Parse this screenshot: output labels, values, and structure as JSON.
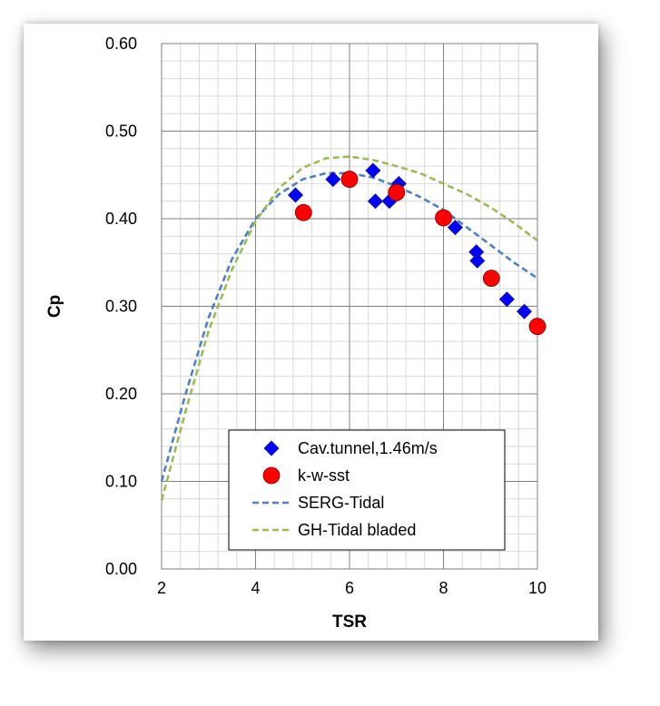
{
  "chart_data": {
    "type": "scatter",
    "title": "",
    "xlabel": "TSR",
    "ylabel": "Cp",
    "xlim": [
      2,
      10
    ],
    "ylim": [
      0,
      0.6
    ],
    "x_ticks": [
      2,
      4,
      6,
      8,
      10
    ],
    "y_ticks": [
      0.0,
      0.1,
      0.2,
      0.3,
      0.4,
      0.5,
      0.6
    ],
    "x_tick_labels": [
      "2",
      "4",
      "6",
      "8",
      "10"
    ],
    "y_tick_labels": [
      "0.00",
      "0.10",
      "0.20",
      "0.30",
      "0.40",
      "0.50",
      "0.60"
    ],
    "grid": true,
    "legend_position": "bottom-center",
    "series": [
      {
        "name": "Cav.tunnel,1.46m/s",
        "type": "scatter",
        "marker": "diamond",
        "color": "#0000ff",
        "x": [
          4.85,
          5.65,
          6.5,
          6.55,
          6.85,
          7.05,
          8.25,
          8.7,
          8.72,
          9.35,
          9.72
        ],
        "y": [
          0.427,
          0.445,
          0.455,
          0.42,
          0.42,
          0.44,
          0.39,
          0.362,
          0.352,
          0.308,
          0.294
        ]
      },
      {
        "name": "k-w-sst",
        "type": "scatter",
        "marker": "circle",
        "color": "#ff0000",
        "x": [
          5.02,
          6.0,
          7.0,
          8.0,
          9.02,
          10.0
        ],
        "y": [
          0.407,
          0.445,
          0.43,
          0.401,
          0.332,
          0.277
        ]
      },
      {
        "name": "SERG-Tidal",
        "type": "line",
        "dash": "dashed",
        "color": "#4f81bd",
        "x": [
          2.0,
          2.5,
          3.0,
          3.5,
          4.0,
          4.5,
          5.0,
          5.5,
          6.0,
          6.5,
          7.0,
          7.5,
          8.0,
          8.5,
          9.0,
          9.5,
          10.0
        ],
        "y": [
          0.1,
          0.198,
          0.287,
          0.354,
          0.4,
          0.428,
          0.445,
          0.452,
          0.452,
          0.447,
          0.437,
          0.425,
          0.41,
          0.39,
          0.37,
          0.35,
          0.332
        ]
      },
      {
        "name": "GH-Tidal bladed",
        "type": "line",
        "dash": "dashed",
        "color": "#9bbb59",
        "x": [
          2.0,
          2.5,
          3.0,
          3.5,
          4.0,
          4.5,
          5.0,
          5.5,
          6.0,
          6.5,
          7.0,
          7.5,
          8.0,
          8.5,
          9.0,
          9.5,
          10.0
        ],
        "y": [
          0.078,
          0.178,
          0.272,
          0.342,
          0.397,
          0.435,
          0.458,
          0.469,
          0.471,
          0.467,
          0.46,
          0.452,
          0.44,
          0.428,
          0.413,
          0.395,
          0.375
        ]
      }
    ]
  }
}
